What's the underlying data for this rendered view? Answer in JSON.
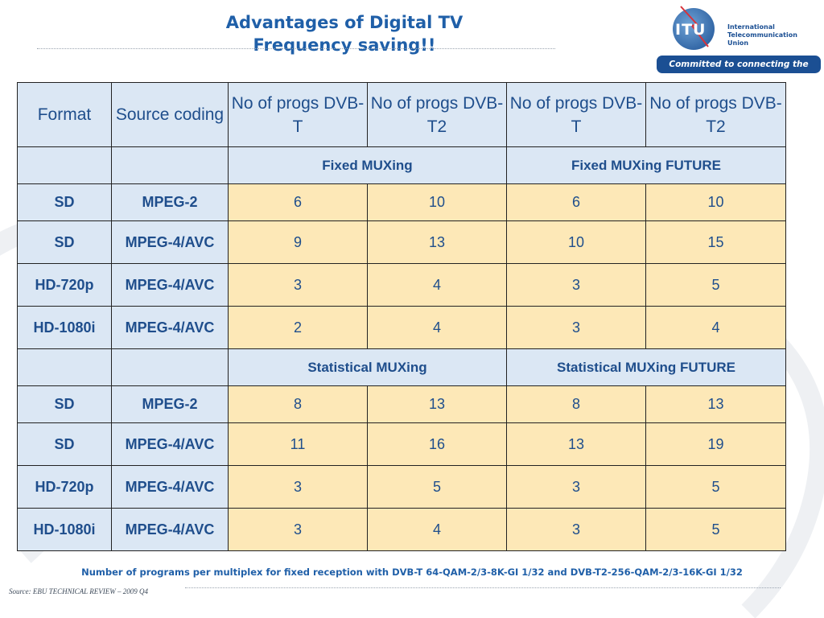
{
  "title": {
    "line1": "Advantages of Digital TV",
    "line2": "Frequency saving!!"
  },
  "logo": {
    "mark": "ITU",
    "line1": "International",
    "line2": "Telecommunication",
    "line3": "Union",
    "tagline": "Committed to connecting the world"
  },
  "table": {
    "headers": [
      "Format",
      "Source coding",
      "No of progs DVB-T",
      "No of progs DVB-T2",
      "No of progs DVB-T",
      "No of progs DVB-T2"
    ],
    "groups": [
      {
        "label_a": "Fixed MUXing",
        "label_b": "Fixed  MUXing FUTURE",
        "rows": [
          {
            "format": "SD",
            "coding": "MPEG-2",
            "v1": "6",
            "v2": "10",
            "v3": "6",
            "v4": "10"
          },
          {
            "format": "SD",
            "coding": "MPEG-4/AVC",
            "v1": "9",
            "v2": "13",
            "v3": "10",
            "v4": "15"
          },
          {
            "format": "HD-720p",
            "coding": "MPEG-4/AVC",
            "v1": "3",
            "v2": "4",
            "v3": "3",
            "v4": "5"
          },
          {
            "format": "HD-1080i",
            "coding": "MPEG-4/AVC",
            "v1": "2",
            "v2": "4",
            "v3": "3",
            "v4": "4"
          }
        ]
      },
      {
        "label_a": "Statistical MUXing",
        "label_b": "Statistical MUXing FUTURE",
        "rows": [
          {
            "format": "SD",
            "coding": "MPEG-2",
            "v1": "8",
            "v2": "13",
            "v3": "8",
            "v4": "13"
          },
          {
            "format": "SD",
            "coding": "MPEG-4/AVC",
            "v1": "11",
            "v2": "16",
            "v3": "13",
            "v4": "19"
          },
          {
            "format": "HD-720p",
            "coding": "MPEG-4/AVC",
            "v1": "3",
            "v2": "5",
            "v3": "3",
            "v4": "5"
          },
          {
            "format": "HD-1080i",
            "coding": "MPEG-4/AVC",
            "v1": "3",
            "v2": "4",
            "v3": "3",
            "v4": "5"
          }
        ]
      }
    ]
  },
  "caption": "Number of programs per multiplex for fixed reception with DVB-T 64-QAM-2/3-8K-GI 1/32 and DVB-T2-256-QAM-2/3-16K-GI 1/32",
  "source": "Source: EBU TECHNICAL REVIEW – 2009 Q4",
  "colors": {
    "title": "#1f5fa8",
    "header_fill": "#dbe7f4",
    "value_fill": "#fde8b7",
    "cell_text": "#1f4e8c",
    "itu_blue": "#1b4f93"
  }
}
